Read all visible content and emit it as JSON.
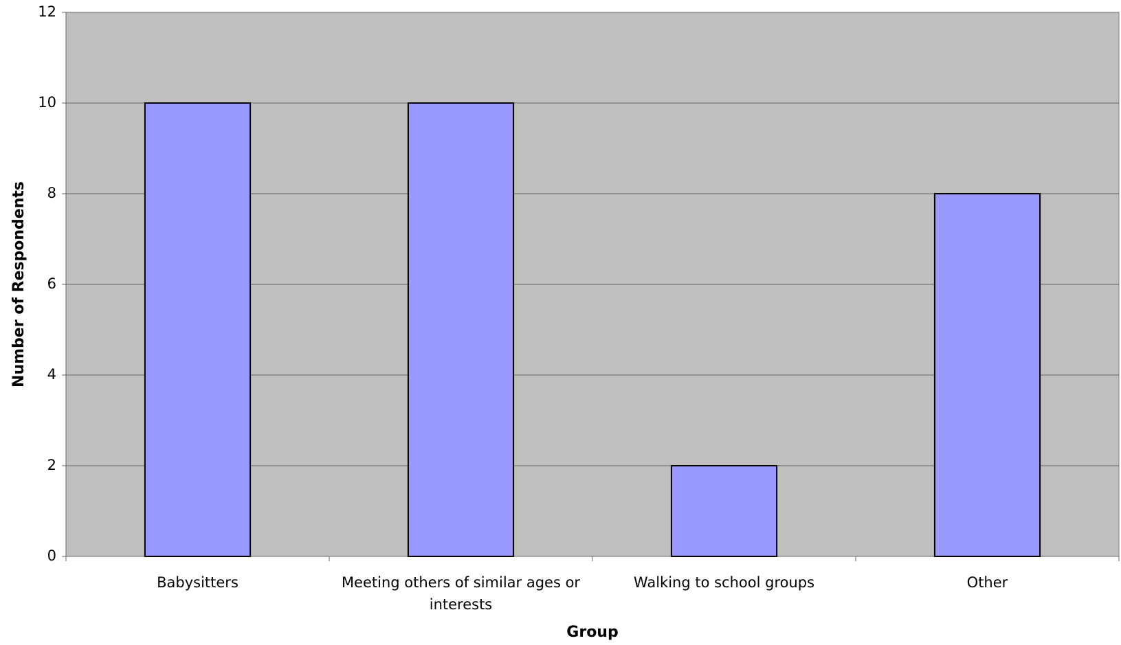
{
  "chart_data": {
    "type": "bar",
    "xlabel": "Group",
    "ylabel": "Number of Respondents",
    "categories": [
      "Babysitters",
      "Meeting others of similar ages or interests",
      "Walking to school groups",
      "Other"
    ],
    "values": [
      10,
      10,
      2,
      8
    ],
    "color": "#9999ff",
    "ylim": [
      0,
      12
    ],
    "yticks": [
      0,
      2,
      4,
      6,
      8,
      10,
      12
    ],
    "grid": true
  }
}
